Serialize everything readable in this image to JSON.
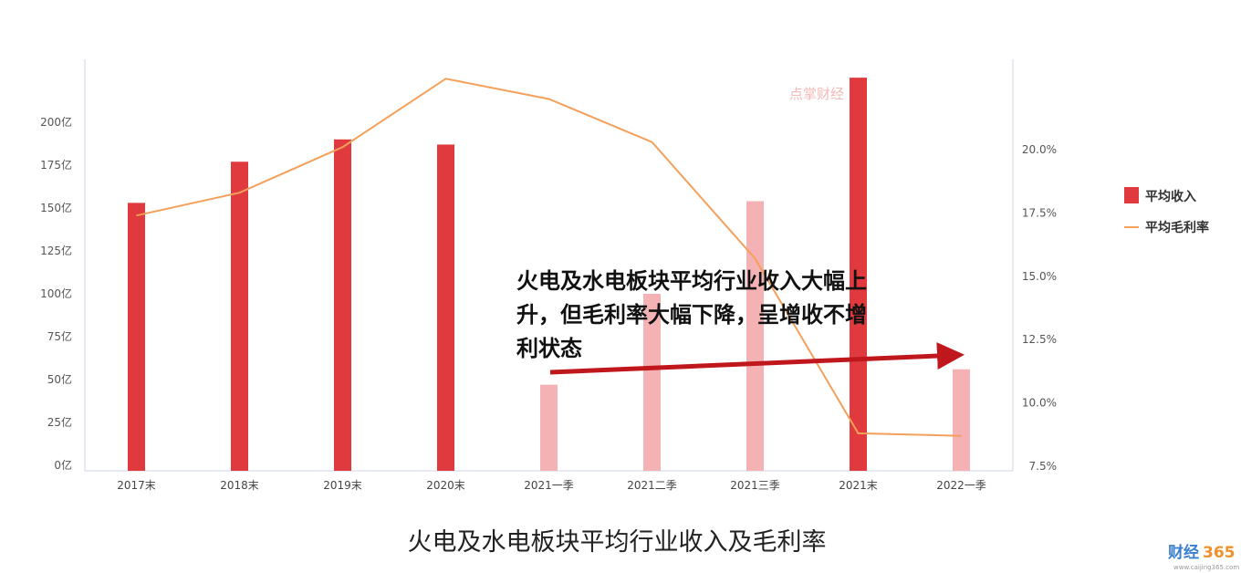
{
  "chart_data": {
    "type": "bar",
    "caption": "火电及水电板块平均行业收入及毛利率",
    "categories": [
      "2017末",
      "2018末",
      "2019末",
      "2020末",
      "2021一季",
      "2021二季",
      "2021三季",
      "2021末",
      "2022一季"
    ],
    "bar_series": {
      "name": "平均收入",
      "values": [
        153,
        177,
        190,
        187,
        47,
        100,
        154,
        226,
        56
      ],
      "colors": [
        "#e0393e",
        "#e0393e",
        "#e0393e",
        "#e0393e",
        "#f4b2b4",
        "#f4b2b4",
        "#f4b2b4",
        "#e0393e",
        "#f4b2b4"
      ]
    },
    "line_series": {
      "name": "平均毛利率",
      "values": [
        17.4,
        18.3,
        20.1,
        22.8,
        22.0,
        20.3,
        15.7,
        8.8,
        8.7
      ],
      "color": "#f5a05a"
    },
    "left_axis": {
      "ylim": [
        0,
        200
      ],
      "ticks": [
        0,
        25,
        50,
        75,
        100,
        125,
        150,
        175,
        200
      ],
      "tick_labels": [
        "0亿",
        "25亿",
        "50亿",
        "75亿",
        "100亿",
        "125亿",
        "150亿",
        "175亿",
        "200亿"
      ]
    },
    "right_axis": {
      "ylim": [
        7.5,
        20.0
      ],
      "ticks": [
        7.5,
        10.0,
        12.5,
        15.0,
        17.5,
        20.0
      ],
      "tick_labels": [
        "7.5%",
        "10.0%",
        "12.5%",
        "15.0%",
        "17.5%",
        "20.0%"
      ]
    },
    "legend": {
      "position": "right",
      "items": [
        {
          "label": "平均收入",
          "kind": "bar",
          "color": "#e0393e"
        },
        {
          "label": "平均毛利率",
          "kind": "line",
          "color": "#f5a05a"
        }
      ]
    },
    "annotation": {
      "lines": [
        "火电及水电板块平均行业收入大幅上",
        "升，但毛利率大幅下降，呈增收不增",
        "利状态"
      ],
      "arrow_color": "#c0171c"
    },
    "watermark": "点掌财经"
  },
  "brand": {
    "name_a": "财经",
    "name_b": "365",
    "url": "www.caijing365.com"
  }
}
